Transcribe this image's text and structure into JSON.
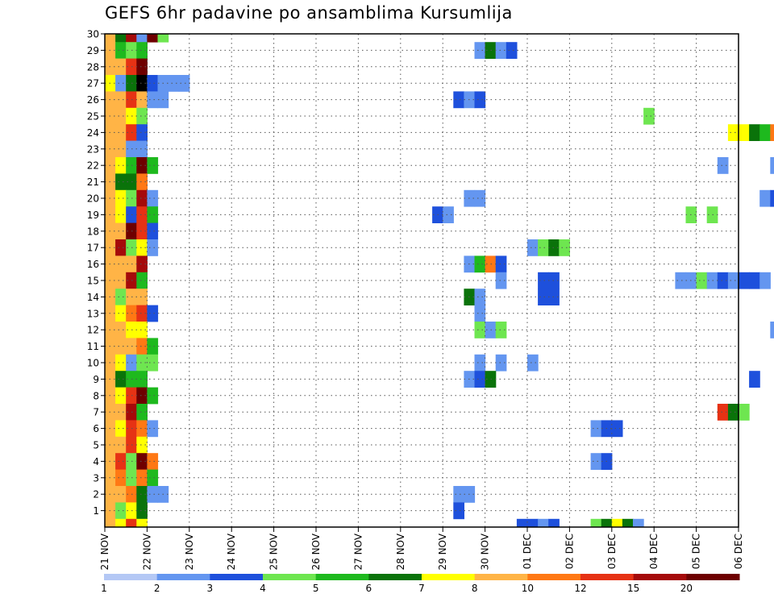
{
  "chart_data": {
    "type": "heatmap",
    "title": "GEFS 6hr padavine po ansamblima Kursumlija",
    "xlabel": "",
    "ylabel": "",
    "x_ticks": [
      "21 NOV",
      "22 NOV",
      "23 NOV",
      "24 NOV",
      "25 NOV",
      "26 NOV",
      "27 NOV",
      "28 NOV",
      "29 NOV",
      "30 NOV",
      "01 DEC",
      "02 DEC",
      "03 DEC",
      "04 DEC",
      "05 DEC",
      "06 DEC"
    ],
    "y_ticks": [
      1,
      2,
      3,
      4,
      5,
      6,
      7,
      8,
      9,
      10,
      11,
      12,
      13,
      14,
      15,
      16,
      17,
      18,
      19,
      20,
      21,
      22,
      23,
      24,
      25,
      26,
      27,
      28,
      29,
      30
    ],
    "ylim": [
      0,
      30
    ],
    "time_steps_per_day": 4,
    "grid": true,
    "colorbar": {
      "boundaries": [
        1,
        2,
        3,
        4,
        5,
        6,
        7,
        8,
        10,
        12,
        15,
        20
      ],
      "labels": [
        "1",
        "2",
        "3",
        "4",
        "5",
        "6",
        "7",
        "8",
        "10",
        "12",
        "15",
        "20"
      ],
      "colors": [
        "#b4c8f5",
        "#6496f0",
        "#1e50dc",
        "#6ee650",
        "#1eb91e",
        "#0a730a",
        "#ffff00",
        "#ffb446",
        "#ff7814",
        "#e63214",
        "#a50a0a",
        "#6e0000"
      ]
    },
    "cells": [
      [
        30,
        0,
        7
      ],
      [
        30,
        1,
        5
      ],
      [
        30,
        2,
        10
      ],
      [
        30,
        3,
        1
      ],
      [
        30,
        4,
        11
      ],
      [
        30,
        5,
        3
      ],
      [
        29,
        0,
        7
      ],
      [
        29,
        1,
        4
      ],
      [
        29,
        2,
        3
      ],
      [
        29,
        3,
        4
      ],
      [
        28,
        0,
        7
      ],
      [
        28,
        1,
        7
      ],
      [
        28,
        2,
        9
      ],
      [
        28,
        3,
        11
      ],
      [
        27,
        0,
        6
      ],
      [
        27,
        1,
        1
      ],
      [
        27,
        2,
        5
      ],
      [
        27,
        3,
        12
      ],
      [
        27,
        4,
        2
      ],
      [
        27,
        5,
        1
      ],
      [
        27,
        6,
        1
      ],
      [
        27,
        7,
        1
      ],
      [
        26,
        0,
        7
      ],
      [
        26,
        1,
        7
      ],
      [
        26,
        2,
        9
      ],
      [
        26,
        3,
        7
      ],
      [
        26,
        4,
        1
      ],
      [
        26,
        5,
        1
      ],
      [
        25,
        0,
        7
      ],
      [
        25,
        1,
        7
      ],
      [
        25,
        2,
        6
      ],
      [
        25,
        3,
        3
      ],
      [
        24,
        0,
        7
      ],
      [
        24,
        1,
        7
      ],
      [
        24,
        2,
        9
      ],
      [
        24,
        3,
        2
      ],
      [
        23,
        0,
        7
      ],
      [
        23,
        1,
        7
      ],
      [
        23,
        2,
        1
      ],
      [
        23,
        3,
        1
      ],
      [
        22,
        0,
        7
      ],
      [
        22,
        1,
        6
      ],
      [
        22,
        2,
        4
      ],
      [
        22,
        3,
        11
      ],
      [
        22,
        4,
        4
      ],
      [
        21,
        0,
        7
      ],
      [
        21,
        1,
        5
      ],
      [
        21,
        2,
        5
      ],
      [
        21,
        3,
        8
      ],
      [
        20,
        0,
        7
      ],
      [
        20,
        1,
        6
      ],
      [
        20,
        2,
        3
      ],
      [
        20,
        3,
        10
      ],
      [
        20,
        4,
        1
      ],
      [
        19,
        0,
        7
      ],
      [
        19,
        1,
        6
      ],
      [
        19,
        2,
        2
      ],
      [
        19,
        3,
        9
      ],
      [
        19,
        4,
        4
      ],
      [
        18,
        0,
        7
      ],
      [
        18,
        1,
        7
      ],
      [
        18,
        2,
        11
      ],
      [
        18,
        3,
        9
      ],
      [
        18,
        4,
        2
      ],
      [
        17,
        0,
        7
      ],
      [
        17,
        1,
        10
      ],
      [
        17,
        2,
        3
      ],
      [
        17,
        3,
        6
      ],
      [
        17,
        4,
        1
      ],
      [
        16,
        0,
        7
      ],
      [
        16,
        1,
        7
      ],
      [
        16,
        2,
        7
      ],
      [
        16,
        3,
        10
      ],
      [
        15,
        0,
        7
      ],
      [
        15,
        1,
        7
      ],
      [
        15,
        2,
        10
      ],
      [
        15,
        3,
        4
      ],
      [
        14,
        0,
        7
      ],
      [
        14,
        1,
        3
      ],
      [
        14,
        2,
        7
      ],
      [
        14,
        3,
        7
      ],
      [
        13,
        0,
        7
      ],
      [
        13,
        1,
        6
      ],
      [
        13,
        2,
        8
      ],
      [
        13,
        3,
        9
      ],
      [
        13,
        4,
        2
      ],
      [
        12,
        0,
        7
      ],
      [
        12,
        1,
        7
      ],
      [
        12,
        2,
        6
      ],
      [
        12,
        3,
        6
      ],
      [
        11,
        0,
        7
      ],
      [
        11,
        1,
        7
      ],
      [
        11,
        2,
        7
      ],
      [
        11,
        3,
        8
      ],
      [
        11,
        4,
        4
      ],
      [
        10,
        0,
        7
      ],
      [
        10,
        1,
        6
      ],
      [
        10,
        2,
        1
      ],
      [
        10,
        3,
        3
      ],
      [
        10,
        4,
        3
      ],
      [
        9,
        0,
        7
      ],
      [
        9,
        1,
        5
      ],
      [
        9,
        2,
        4
      ],
      [
        9,
        3,
        4
      ],
      [
        8,
        0,
        7
      ],
      [
        8,
        1,
        6
      ],
      [
        8,
        2,
        9
      ],
      [
        8,
        3,
        11
      ],
      [
        8,
        4,
        4
      ],
      [
        7,
        0,
        7
      ],
      [
        7,
        1,
        7
      ],
      [
        7,
        2,
        10
      ],
      [
        7,
        3,
        4
      ],
      [
        6,
        0,
        7
      ],
      [
        6,
        1,
        6
      ],
      [
        6,
        2,
        9
      ],
      [
        6,
        3,
        8
      ],
      [
        6,
        4,
        1
      ],
      [
        5,
        0,
        7
      ],
      [
        5,
        1,
        7
      ],
      [
        5,
        2,
        9
      ],
      [
        5,
        3,
        6
      ],
      [
        4,
        0,
        7
      ],
      [
        4,
        1,
        9
      ],
      [
        4,
        2,
        3
      ],
      [
        4,
        3,
        11
      ],
      [
        4,
        4,
        8
      ],
      [
        3,
        0,
        7
      ],
      [
        3,
        1,
        8
      ],
      [
        3,
        2,
        3
      ],
      [
        3,
        3,
        8
      ],
      [
        3,
        4,
        4
      ],
      [
        2,
        0,
        7
      ],
      [
        2,
        1,
        7
      ],
      [
        2,
        2,
        8
      ],
      [
        2,
        3,
        5
      ],
      [
        2,
        4,
        1
      ],
      [
        2,
        5,
        1
      ],
      [
        1,
        0,
        7
      ],
      [
        1,
        1,
        3
      ],
      [
        1,
        2,
        6
      ],
      [
        1,
        3,
        5
      ],
      [
        0,
        0,
        7
      ],
      [
        0,
        1,
        6
      ],
      [
        0,
        2,
        9
      ],
      [
        0,
        3,
        6
      ],
      [
        29,
        35,
        1
      ],
      [
        29,
        36,
        5
      ],
      [
        29,
        37,
        1
      ],
      [
        29,
        38,
        2
      ],
      [
        26,
        33,
        2
      ],
      [
        26,
        34,
        1
      ],
      [
        26,
        35,
        2
      ],
      [
        25,
        51,
        3
      ],
      [
        25,
        67,
        2
      ],
      [
        25,
        68,
        2
      ],
      [
        24,
        59,
        6
      ],
      [
        24,
        60,
        6
      ],
      [
        24,
        61,
        5
      ],
      [
        24,
        62,
        4
      ],
      [
        24,
        63,
        8
      ],
      [
        24,
        64,
        6
      ],
      [
        24,
        65,
        2
      ],
      [
        24,
        66,
        1
      ],
      [
        22,
        58,
        1
      ],
      [
        22,
        63,
        1
      ],
      [
        20,
        34,
        1
      ],
      [
        20,
        35,
        1
      ],
      [
        20,
        62,
        1
      ],
      [
        20,
        63,
        2
      ],
      [
        19,
        31,
        2
      ],
      [
        19,
        32,
        1
      ],
      [
        19,
        55,
        3
      ],
      [
        19,
        57,
        3
      ],
      [
        17,
        40,
        1
      ],
      [
        17,
        41,
        3
      ],
      [
        17,
        42,
        5
      ],
      [
        17,
        43,
        3
      ],
      [
        16,
        34,
        1
      ],
      [
        16,
        35,
        4
      ],
      [
        16,
        36,
        8
      ],
      [
        16,
        37,
        2
      ],
      [
        15,
        37,
        1
      ],
      [
        15,
        41,
        2
      ],
      [
        15,
        42,
        2
      ],
      [
        15,
        54,
        1
      ],
      [
        15,
        55,
        1
      ],
      [
        15,
        56,
        3
      ],
      [
        15,
        57,
        1
      ],
      [
        15,
        58,
        2
      ],
      [
        15,
        59,
        1
      ],
      [
        15,
        60,
        2
      ],
      [
        15,
        61,
        2
      ],
      [
        15,
        62,
        1
      ],
      [
        14,
        34,
        5
      ],
      [
        14,
        35,
        1
      ],
      [
        14,
        41,
        2
      ],
      [
        14,
        42,
        2
      ],
      [
        13,
        35,
        1
      ],
      [
        12,
        35,
        3
      ],
      [
        12,
        36,
        1
      ],
      [
        12,
        37,
        3
      ],
      [
        12,
        63,
        1
      ],
      [
        12,
        67,
        4
      ],
      [
        12,
        68,
        3
      ],
      [
        10,
        35,
        1
      ],
      [
        10,
        37,
        1
      ],
      [
        10,
        40,
        1
      ],
      [
        9,
        34,
        1
      ],
      [
        9,
        35,
        2
      ],
      [
        9,
        36,
        5
      ],
      [
        9,
        61,
        2
      ],
      [
        7,
        58,
        9
      ],
      [
        7,
        59,
        5
      ],
      [
        7,
        60,
        3
      ],
      [
        6,
        46,
        1
      ],
      [
        6,
        47,
        2
      ],
      [
        6,
        48,
        2
      ],
      [
        4,
        46,
        1
      ],
      [
        4,
        47,
        2
      ],
      [
        2,
        33,
        1
      ],
      [
        2,
        34,
        1
      ],
      [
        1,
        33,
        2
      ],
      [
        0,
        39,
        2
      ],
      [
        0,
        40,
        2
      ],
      [
        0,
        41,
        1
      ],
      [
        0,
        42,
        2
      ],
      [
        0,
        46,
        3
      ],
      [
        0,
        47,
        5
      ],
      [
        0,
        48,
        6
      ],
      [
        0,
        49,
        5
      ],
      [
        0,
        50,
        1
      ],
      [
        -1,
        46,
        1
      ],
      [
        -1,
        47,
        1
      ],
      [
        -1,
        48,
        3
      ]
    ]
  }
}
